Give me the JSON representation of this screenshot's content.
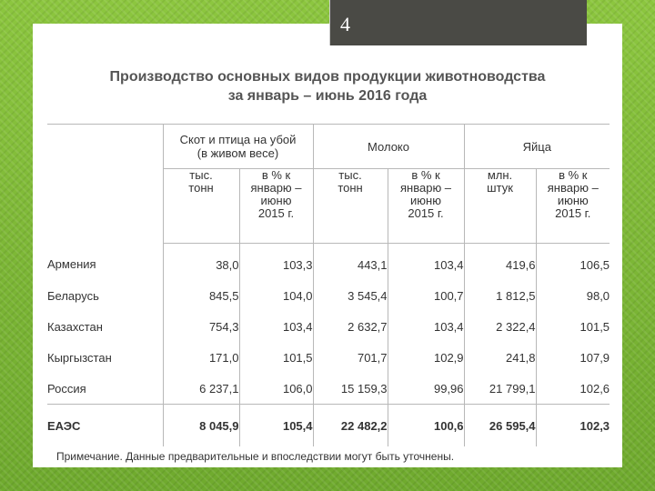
{
  "page_number": "4",
  "title_line1": "Производство основных видов продукции животноводства",
  "title_line2": "за январь – июнь 2016 года",
  "table": {
    "group_headers": [
      "Скот и птица на убой\n(в живом весе)",
      "Молоко",
      "Яйца"
    ],
    "sub_headers": [
      "тыс.\nтонн",
      "в % к\nянварю –\nиюню\n2015 г.",
      "тыс.\nтонн",
      "в % к\nянварю –\nиюню\n2015 г.",
      "млн.\nштук",
      "в % к\nянварю –\nиюню\n2015 г."
    ],
    "rows": [
      {
        "name": "Армения",
        "values": [
          "38,0",
          "103,3",
          "443,1",
          "103,4",
          "419,6",
          "106,5"
        ]
      },
      {
        "name": "Беларусь",
        "values": [
          "845,5",
          "104,0",
          "3 545,4",
          "100,7",
          "1 812,5",
          "98,0"
        ]
      },
      {
        "name": "Казахстан",
        "values": [
          "754,3",
          "103,4",
          "2 632,7",
          "103,4",
          "2 322,4",
          "101,5"
        ]
      },
      {
        "name": "Кыргызстан",
        "values": [
          "171,0",
          "101,5",
          "701,7",
          "102,9",
          "241,8",
          "107,9"
        ]
      },
      {
        "name": "Россия",
        "values": [
          "6 237,1",
          "106,0",
          "15 159,3",
          "99,96",
          "21 799,1",
          "102,6"
        ]
      }
    ],
    "total": {
      "name": "ЕАЭС",
      "values": [
        "8 045,9",
        "105,4",
        "22 482,2",
        "100,6",
        "26 595,4",
        "102,3"
      ]
    }
  },
  "note": "Примечание. Данные предварительные и впоследствии могут быть уточнены."
}
